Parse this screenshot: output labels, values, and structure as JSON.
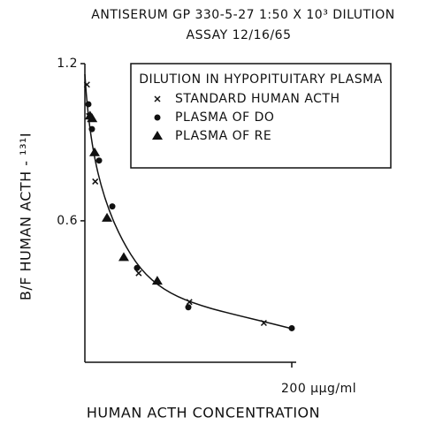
{
  "chart_data": {
    "type": "scatter",
    "title": "ANTISERUM GP 330-5-27   1:50 X 10³ DILUTION",
    "subtitle": "ASSAY 12/16/65",
    "xlabel": "HUMAN ACTH CONCENTRATION",
    "ylabel": "B/F HUMAN ACTH - ¹³¹I",
    "legend_title": "DILUTION IN HYPOPITUITARY PLASMA",
    "xlim": [
      0,
      200
    ],
    "ylim": [
      0.06,
      1.2
    ],
    "xticks": [
      {
        "value": 200,
        "label": "200 µµg/ml"
      }
    ],
    "yticks": [
      1.2,
      0.6
    ],
    "series": [
      {
        "name": "STANDARD HUMAN ACTH",
        "marker": "x",
        "color": "#111111",
        "x": [
          2,
          4,
          10,
          52,
          101,
          173
        ],
        "values": [
          1.12,
          1.0,
          0.75,
          0.4,
          0.29,
          0.21
        ]
      },
      {
        "name": "PLASMA OF DO",
        "marker": "circle",
        "color": "#111111",
        "x": [
          3.4,
          5,
          6.8,
          13.7,
          26.5,
          50.4,
          100,
          200
        ],
        "values": [
          1.045,
          1.0,
          0.95,
          0.83,
          0.655,
          0.42,
          0.27,
          0.19
        ]
      },
      {
        "name": "PLASMA OF RE",
        "marker": "triangle",
        "color": "#111111",
        "x": [
          5,
          7,
          9.4,
          21.4,
          37.6,
          70
        ],
        "values": [
          1.0,
          0.99,
          0.86,
          0.61,
          0.46,
          0.37
        ]
      }
    ]
  }
}
